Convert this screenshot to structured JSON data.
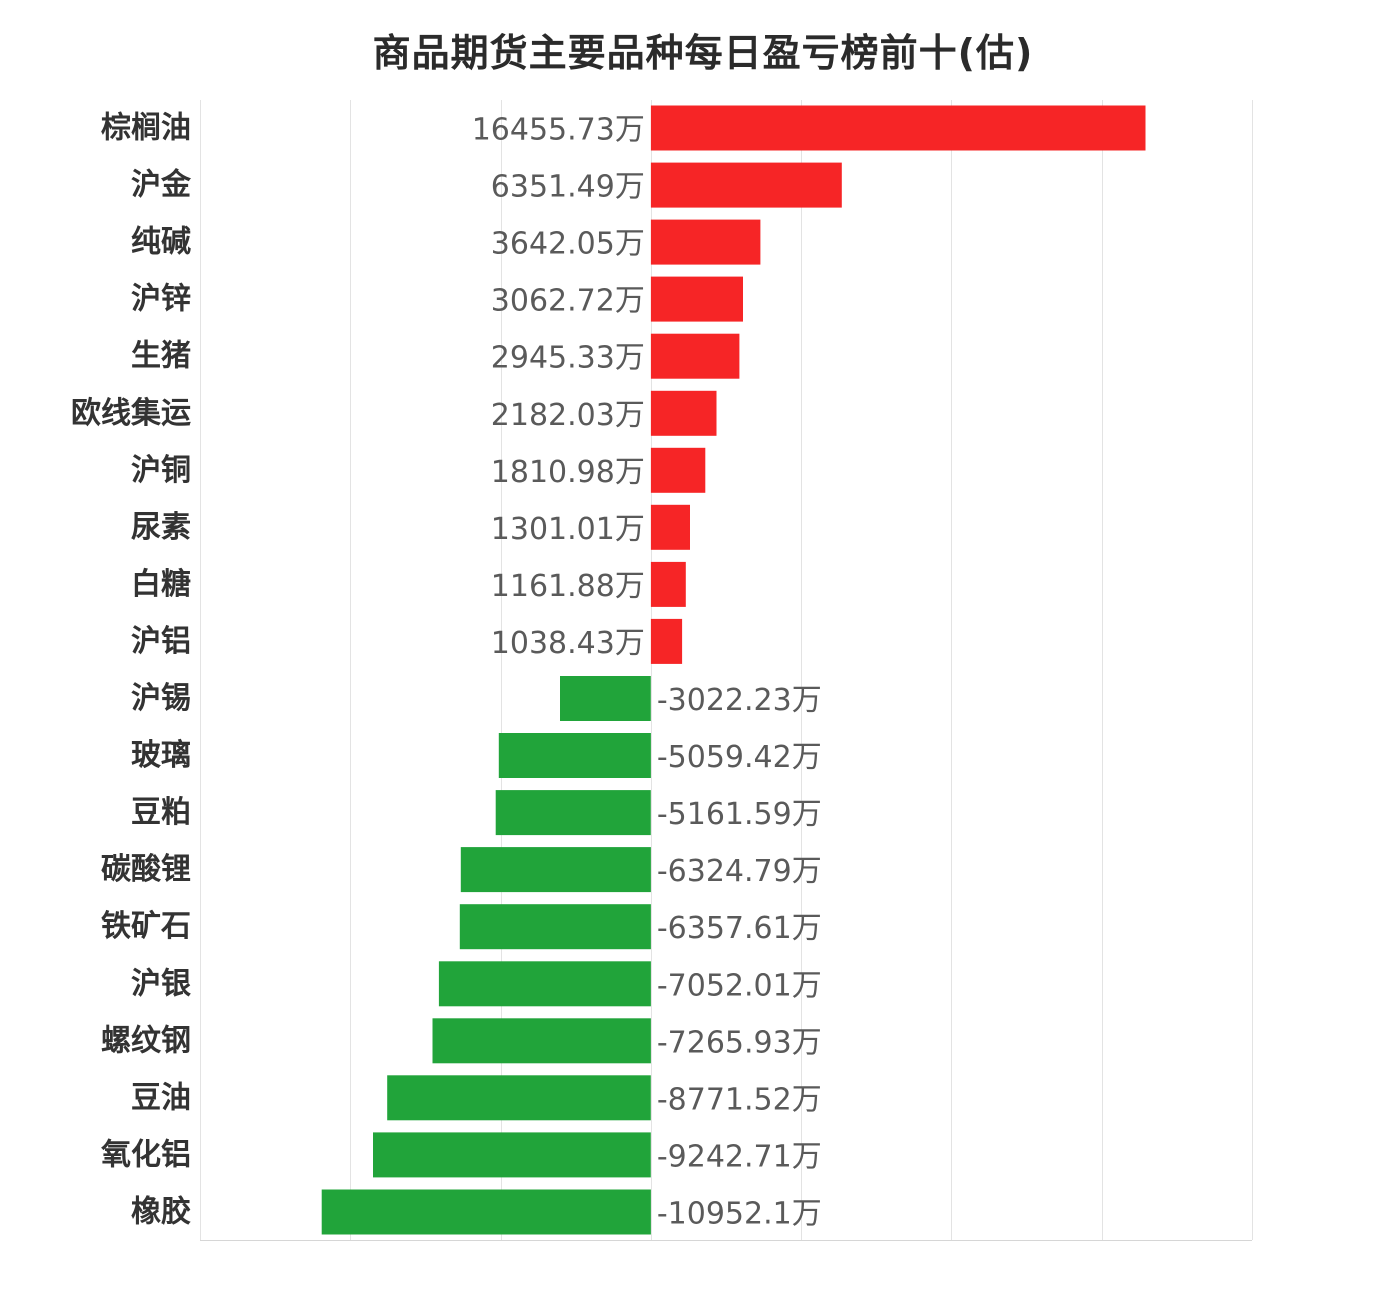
{
  "chart_data": {
    "type": "bar",
    "orientation": "horizontal",
    "title": "商品期货主要品种每日盈亏榜前十(估)",
    "unit": "万",
    "categories": [
      "棕榈油",
      "沪金",
      "纯碱",
      "沪锌",
      "生猪",
      "欧线集运",
      "沪铜",
      "尿素",
      "白糖",
      "沪铝",
      "沪锡",
      "玻璃",
      "豆粕",
      "碳酸锂",
      "铁矿石",
      "沪银",
      "螺纹钢",
      "豆油",
      "氧化铝",
      "橡胶"
    ],
    "values": [
      16455.73,
      6351.49,
      3642.05,
      3062.72,
      2945.33,
      2182.03,
      1810.98,
      1301.01,
      1161.88,
      1038.43,
      -3022.23,
      -5059.42,
      -5161.59,
      -6324.79,
      -6357.61,
      -7052.01,
      -7265.93,
      -8771.52,
      -9242.71,
      -10952.1
    ],
    "value_labels": [
      "16455.73万",
      "6351.49万",
      "3642.05万",
      "3062.72万",
      "2945.33万",
      "2182.03万",
      "1810.98万",
      "1301.01万",
      "1161.88万",
      "1038.43万",
      "-3022.23万",
      "-5059.42万",
      "-5161.59万",
      "-6324.79万",
      "-6357.61万",
      "-7052.01万",
      "-7265.93万",
      "-8771.52万",
      "-9242.71万",
      "-10952.1万"
    ],
    "xlim": [
      -15000,
      20000
    ],
    "grid": true,
    "colors": {
      "positive": "#f62526",
      "negative": "#21a43a"
    }
  }
}
